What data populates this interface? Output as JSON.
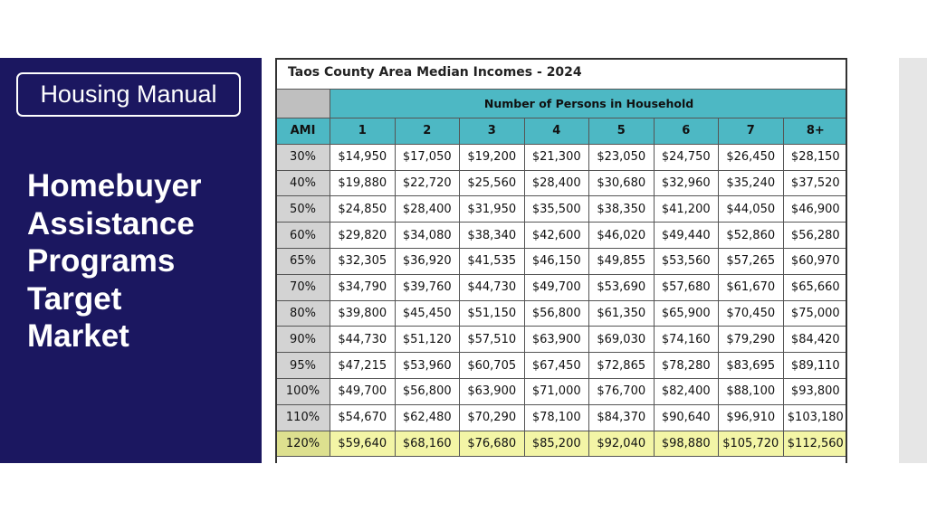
{
  "sidebar": {
    "badge": "Housing Manual",
    "title_lines": [
      "Homebuyer",
      "Assistance",
      "Programs",
      "Target",
      "Market"
    ]
  },
  "table": {
    "title": "Taos County Area Median Incomes - 2024",
    "group_header": "Number of Persons in Household",
    "columns": [
      "AMI",
      "1",
      "2",
      "3",
      "4",
      "5",
      "6",
      "7",
      "8+"
    ],
    "rows": [
      [
        "30%",
        "$14,950",
        "$17,050",
        "$19,200",
        "$21,300",
        "$23,050",
        "$24,750",
        "$26,450",
        "$28,150"
      ],
      [
        "40%",
        "$19,880",
        "$22,720",
        "$25,560",
        "$28,400",
        "$30,680",
        "$32,960",
        "$35,240",
        "$37,520"
      ],
      [
        "50%",
        "$24,850",
        "$28,400",
        "$31,950",
        "$35,500",
        "$38,350",
        "$41,200",
        "$44,050",
        "$46,900"
      ],
      [
        "60%",
        "$29,820",
        "$34,080",
        "$38,340",
        "$42,600",
        "$46,020",
        "$49,440",
        "$52,860",
        "$56,280"
      ],
      [
        "65%",
        "$32,305",
        "$36,920",
        "$41,535",
        "$46,150",
        "$49,855",
        "$53,560",
        "$57,265",
        "$60,970"
      ],
      [
        "70%",
        "$34,790",
        "$39,760",
        "$44,730",
        "$49,700",
        "$53,690",
        "$57,680",
        "$61,670",
        "$65,660"
      ],
      [
        "80%",
        "$39,800",
        "$45,450",
        "$51,150",
        "$56,800",
        "$61,350",
        "$65,900",
        "$70,450",
        "$75,000"
      ],
      [
        "90%",
        "$44,730",
        "$51,120",
        "$57,510",
        "$63,900",
        "$69,030",
        "$74,160",
        "$79,290",
        "$84,420"
      ],
      [
        "95%",
        "$47,215",
        "$53,960",
        "$60,705",
        "$67,450",
        "$72,865",
        "$78,280",
        "$83,695",
        "$89,110"
      ],
      [
        "100%",
        "$49,700",
        "$56,800",
        "$63,900",
        "$71,000",
        "$76,700",
        "$82,400",
        "$88,100",
        "$93,800"
      ],
      [
        "110%",
        "$54,670",
        "$62,480",
        "$70,290",
        "$78,100",
        "$84,370",
        "$90,640",
        "$96,910",
        "$103,180"
      ],
      [
        "120%",
        "$59,640",
        "$68,160",
        "$76,680",
        "$85,200",
        "$92,040",
        "$98,880",
        "$105,720",
        "$112,560"
      ]
    ],
    "highlight_row": "120%",
    "colors": {
      "header_teal": "#4db8c4",
      "highlight_yellow": "#f3f5a6",
      "panel_navy": "#1b1760"
    }
  }
}
